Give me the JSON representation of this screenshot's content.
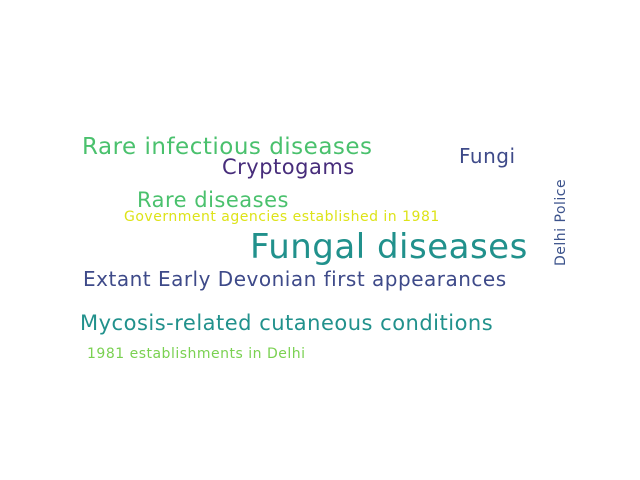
{
  "word_cloud": {
    "words": [
      {
        "text": "Fungal diseases",
        "color": "#21918c"
      },
      {
        "text": "Rare infectious diseases",
        "color": "#4ac16d"
      },
      {
        "text": "Cryptogams",
        "color": "#472d7b"
      },
      {
        "text": "Fungi",
        "color": "#3e4a89"
      },
      {
        "text": "Rare diseases",
        "color": "#4ac16d"
      },
      {
        "text": "Government agencies established in 1981",
        "color": "#dde318"
      },
      {
        "text": "Extant Early Devonian first appearances",
        "color": "#3e4a89"
      },
      {
        "text": "Mycosis-related cutaneous conditions",
        "color": "#21918c"
      },
      {
        "text": "1981 establishments in Delhi",
        "color": "#7ad151"
      },
      {
        "text": "Delhi Police",
        "color": "#3b528b"
      }
    ]
  }
}
